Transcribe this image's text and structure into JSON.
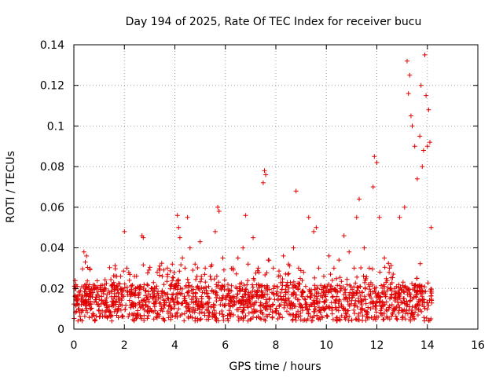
{
  "chart_data": {
    "type": "scatter",
    "title": "Day 194 of 2025, Rate Of TEC Index for receiver bucu",
    "xlabel": "GPS time / hours",
    "ylabel": "ROTI / TECUs",
    "xlim": [
      0,
      16
    ],
    "ylim": [
      0,
      0.14
    ],
    "x_ticks": [
      0,
      2,
      4,
      6,
      8,
      10,
      12,
      14,
      16
    ],
    "y_ticks": [
      0,
      0.02,
      0.04,
      0.06,
      0.08,
      0.1,
      0.12,
      0.14
    ],
    "x_tick_labels": [
      "0",
      "2",
      "4",
      "6",
      "8",
      "10",
      "12",
      "14",
      "16"
    ],
    "y_tick_labels": [
      "0",
      "0.02",
      "0.04",
      "0.06",
      "0.08",
      "0.1",
      "0.12",
      "0.14"
    ],
    "grid": true,
    "marker": "+",
    "colors": {
      "series": "#e00000",
      "grid": "#a0a0a0",
      "axis": "#000000"
    },
    "series": [
      {
        "name": "ROTI",
        "x": [
          0.1,
          0.3,
          0.5,
          0.7,
          0.4,
          0.45,
          0.9,
          1.1,
          1.3,
          1.5,
          1.7,
          1.9,
          2.0,
          2.1,
          2.2,
          2.4,
          2.6,
          2.7,
          2.75,
          2.9,
          3.1,
          3.3,
          3.5,
          3.7,
          3.9,
          4.1,
          4.15,
          4.2,
          4.3,
          4.4,
          4.5,
          4.6,
          4.8,
          5.0,
          5.2,
          5.4,
          5.6,
          5.7,
          5.75,
          5.9,
          6.1,
          6.3,
          6.5,
          6.7,
          6.8,
          6.9,
          7.1,
          7.3,
          7.5,
          7.55,
          7.6,
          7.7,
          7.9,
          8.1,
          8.3,
          8.5,
          8.7,
          8.8,
          8.9,
          9.1,
          9.3,
          9.5,
          9.6,
          9.7,
          9.9,
          10.1,
          10.3,
          10.5,
          10.7,
          10.9,
          11.1,
          11.2,
          11.3,
          11.5,
          11.7,
          11.85,
          11.9,
          12.0,
          12.1,
          12.3,
          12.5,
          12.7,
          12.9,
          13.1,
          13.2,
          13.25,
          13.3,
          13.35,
          13.4,
          13.5,
          13.6,
          13.7,
          13.75,
          13.8,
          13.85,
          13.9,
          13.95,
          14.0,
          14.05,
          14.1,
          14.15,
          0.2,
          0.6,
          1.0,
          1.4,
          1.8,
          2.3,
          2.8,
          3.2,
          3.6,
          4.0,
          4.4,
          4.9,
          5.3,
          5.8,
          6.2,
          6.6,
          7.0,
          7.4,
          7.8,
          8.2,
          8.6,
          9.0,
          9.4,
          9.8,
          10.2,
          10.6,
          11.0,
          11.4,
          11.8,
          12.2,
          12.6,
          13.0,
          13.4,
          13.8,
          14.0
        ],
        "y": [
          0.014,
          0.012,
          0.036,
          0.02,
          0.038,
          0.033,
          0.02,
          0.016,
          0.013,
          0.012,
          0.026,
          0.02,
          0.048,
          0.03,
          0.024,
          0.026,
          0.02,
          0.046,
          0.045,
          0.022,
          0.02,
          0.028,
          0.026,
          0.03,
          0.032,
          0.056,
          0.05,
          0.045,
          0.035,
          0.03,
          0.055,
          0.04,
          0.032,
          0.043,
          0.03,
          0.026,
          0.048,
          0.06,
          0.058,
          0.035,
          0.022,
          0.03,
          0.035,
          0.04,
          0.056,
          0.032,
          0.045,
          0.03,
          0.072,
          0.078,
          0.076,
          0.034,
          0.03,
          0.026,
          0.036,
          0.032,
          0.04,
          0.068,
          0.03,
          0.028,
          0.055,
          0.048,
          0.05,
          0.03,
          0.026,
          0.036,
          0.03,
          0.034,
          0.046,
          0.038,
          0.03,
          0.055,
          0.064,
          0.04,
          0.03,
          0.07,
          0.085,
          0.082,
          0.055,
          0.035,
          0.03,
          0.02,
          0.055,
          0.06,
          0.132,
          0.116,
          0.125,
          0.105,
          0.1,
          0.09,
          0.074,
          0.095,
          0.12,
          0.08,
          0.088,
          0.135,
          0.115,
          0.09,
          0.108,
          0.092,
          0.05,
          0.01,
          0.012,
          0.009,
          0.011,
          0.013,
          0.012,
          0.014,
          0.011,
          0.013,
          0.012,
          0.015,
          0.012,
          0.013,
          0.012,
          0.011,
          0.014,
          0.012,
          0.013,
          0.011,
          0.012,
          0.013,
          0.011,
          0.012,
          0.01,
          0.013,
          0.012,
          0.014,
          0.012,
          0.013,
          0.011,
          0.012,
          0.013,
          0.011,
          0.012,
          0.013
        ]
      }
    ]
  }
}
